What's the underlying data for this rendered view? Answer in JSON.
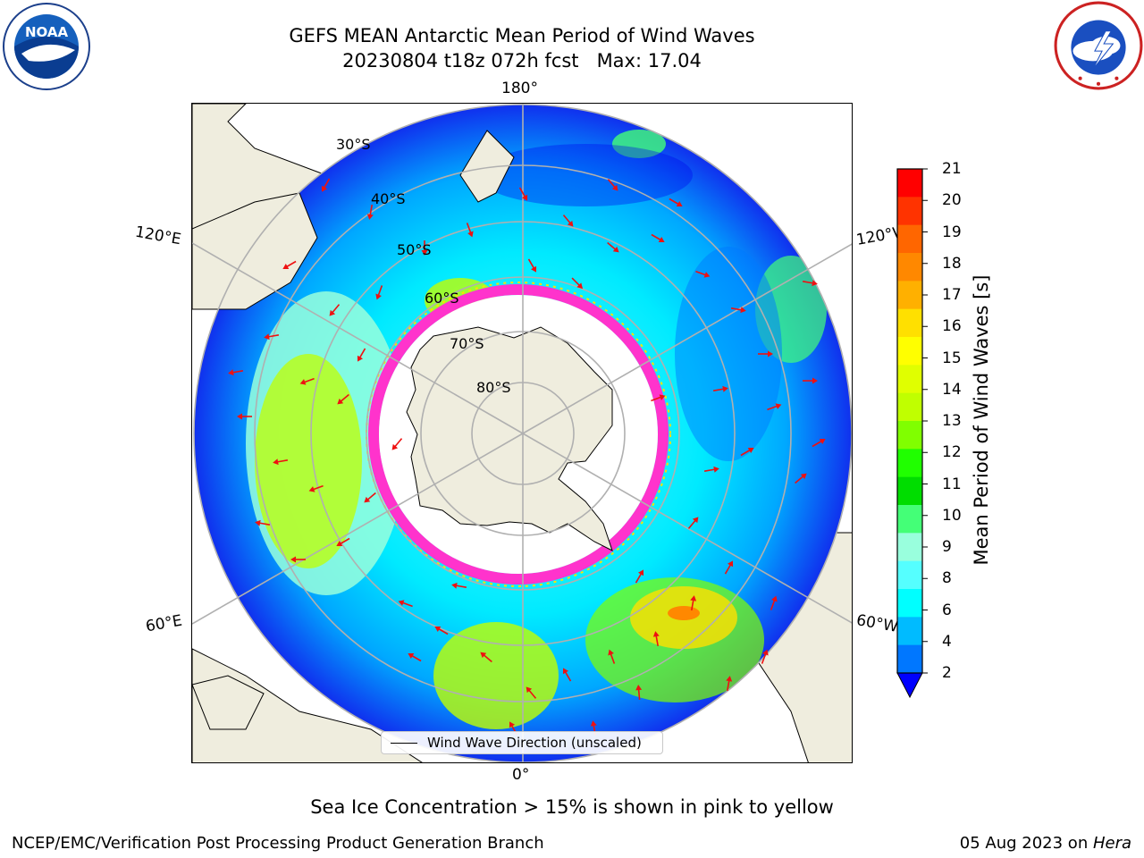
{
  "title": {
    "line1": "GEFS MEAN Antarctic Mean Period of Wind Waves",
    "line2": "20230804 t18z 072h fcst   Max: 17.04"
  },
  "logos": {
    "left": "noaa-logo",
    "right": "national-weather-service-logo"
  },
  "map": {
    "projection": "south-polar-stereographic",
    "longitude_labels": [
      "180°",
      "120°E",
      "120°W",
      "60°E",
      "60°W",
      "0°"
    ],
    "latitude_labels": [
      "30°S",
      "40°S",
      "50°S",
      "60°S",
      "70°S",
      "80°S"
    ],
    "colors": {
      "land": "#efedde",
      "sea_ice_edge": "#ff33cc",
      "arrows": "#ee1111",
      "gridlines": "#b0b0b0"
    }
  },
  "colorbar": {
    "label": "Mean Period of Wind Waves [s]",
    "ticks": [
      "21",
      "20",
      "19",
      "18",
      "17",
      "16",
      "15",
      "14",
      "13",
      "12",
      "11",
      "10",
      "9",
      "8",
      "6",
      "4",
      "2"
    ],
    "colors": [
      "#ff0000",
      "#ff3300",
      "#ff6600",
      "#ff8800",
      "#ffb000",
      "#ffe000",
      "#ffff00",
      "#e0ff00",
      "#c0ff00",
      "#80ff00",
      "#20ff00",
      "#00dd00",
      "#44ff77",
      "#99ffdd",
      "#55ffff",
      "#00ffff",
      "#00bbff",
      "#0077ff"
    ],
    "under_color": "#0000ff"
  },
  "legend": {
    "label": "Wind Wave Direction (unscaled)"
  },
  "footer": {
    "note": "Sea Ice Concentration > 15% is shown in pink to yellow",
    "credit": "NCEP/EMC/Verification Post Processing Product Generation Branch",
    "date": "05 Aug 2023 on ",
    "machine": "Hera"
  }
}
